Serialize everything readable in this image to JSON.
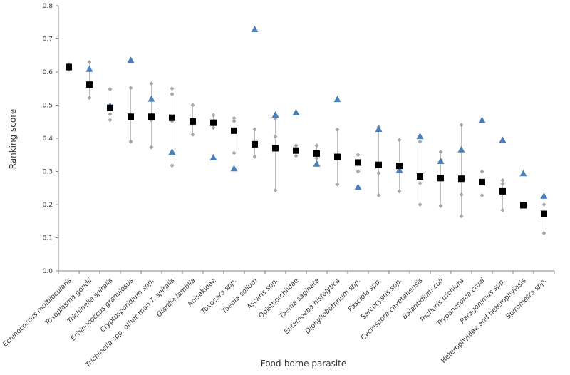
{
  "chart_data": {
    "type": "scatter",
    "xlabel": "Food-borne parasite",
    "ylabel": "Ranking score",
    "ylim": [
      0,
      0.8
    ],
    "yticks": [
      "0.0",
      "0.1",
      "0.2",
      "0.3",
      "0.4",
      "0.5",
      "0.6",
      "0.7",
      "0.8"
    ],
    "grid": false,
    "categories": [
      {
        "label": "Echinococcus multilocularis",
        "italic": true
      },
      {
        "label": "Toxoplasma gondii",
        "italic": true
      },
      {
        "label": "Trichinella spiralis",
        "italic": true
      },
      {
        "label": "Echinococcus granulosus",
        "italic": true
      },
      {
        "label": "Cryptosporidium spp.",
        "italic": true
      },
      {
        "label": "Trichinella spp. other than T. spiralis",
        "italic": true
      },
      {
        "label": "Giardia lamblia",
        "italic": true
      },
      {
        "label": "Anisakidae",
        "italic": false
      },
      {
        "label": "Toxocara spp.",
        "italic": true
      },
      {
        "label": "Taenia solium",
        "italic": true
      },
      {
        "label": "Ascaris spp.",
        "italic": true
      },
      {
        "label": "Opisthorchiidae",
        "italic": false
      },
      {
        "label": "Taenia saginata",
        "italic": true
      },
      {
        "label": "Entamoeba histolytica",
        "italic": true
      },
      {
        "label": "Diphyllobothrium spp.",
        "italic": true
      },
      {
        "label": "Fasciola spp.",
        "italic": true
      },
      {
        "label": "Sarcocystis spp.",
        "italic": true
      },
      {
        "label": "Cyclospora cayetanensis",
        "italic": true
      },
      {
        "label": "Balantidium coli",
        "italic": true
      },
      {
        "label": "Trichuris trichiura",
        "italic": true
      },
      {
        "label": "Trypanosoma cruzi",
        "italic": true
      },
      {
        "label": "Paragonimus spp.",
        "italic": true
      },
      {
        "label": "Heterophyidae and heterophyiasis",
        "italic": false
      },
      {
        "label": "Spirometra spp.",
        "italic": true
      }
    ],
    "series": [
      {
        "marker": "square",
        "color": "#000000",
        "values": [
          0.615,
          0.562,
          0.492,
          0.465,
          0.465,
          0.462,
          0.451,
          0.447,
          0.423,
          0.382,
          0.37,
          0.363,
          0.354,
          0.344,
          0.327,
          0.32,
          0.317,
          0.285,
          0.28,
          0.278,
          0.268,
          0.24,
          0.198,
          0.172
        ]
      },
      {
        "marker": "triangle",
        "color": "#4a7ebb",
        "values": [
          0.615,
          0.608,
          0.497,
          0.635,
          0.518,
          0.358,
          0.446,
          0.341,
          0.308,
          0.728,
          0.47,
          0.477,
          0.322,
          0.517,
          0.252,
          0.427,
          0.303,
          0.405,
          0.33,
          0.365,
          0.454,
          0.394,
          0.293,
          0.225
        ]
      },
      {
        "marker": "diamond",
        "color": "#a6a6a6",
        "point_sets": [
          [
            0.607,
            0.612,
            0.623
          ],
          [
            0.522,
            0.563,
            0.63
          ],
          [
            0.455,
            0.473,
            0.548
          ],
          [
            0.39,
            0.46,
            0.552
          ],
          [
            0.373,
            0.455,
            0.565
          ],
          [
            0.318,
            0.452,
            0.533,
            0.55
          ],
          [
            0.411,
            0.445,
            0.5
          ],
          [
            0.432,
            0.446,
            0.47
          ],
          [
            0.356,
            0.452,
            0.461
          ],
          [
            0.345,
            0.38,
            0.427
          ],
          [
            0.243,
            0.405,
            0.46
          ],
          [
            0.347,
            0.362,
            0.378
          ],
          [
            0.34,
            0.355,
            0.378
          ],
          [
            0.261,
            0.345,
            0.426
          ],
          [
            0.3,
            0.327,
            0.35
          ],
          [
            0.228,
            0.295,
            0.434
          ],
          [
            0.24,
            0.318,
            0.395
          ],
          [
            0.2,
            0.265,
            0.39
          ],
          [
            0.196,
            0.28,
            0.359
          ],
          [
            0.165,
            0.23,
            0.44
          ],
          [
            0.228,
            0.268,
            0.3
          ],
          [
            0.183,
            0.263,
            0.273
          ],
          [
            0.195,
            0.199,
            0.201
          ],
          [
            0.114,
            0.172,
            0.2
          ]
        ]
      }
    ]
  }
}
